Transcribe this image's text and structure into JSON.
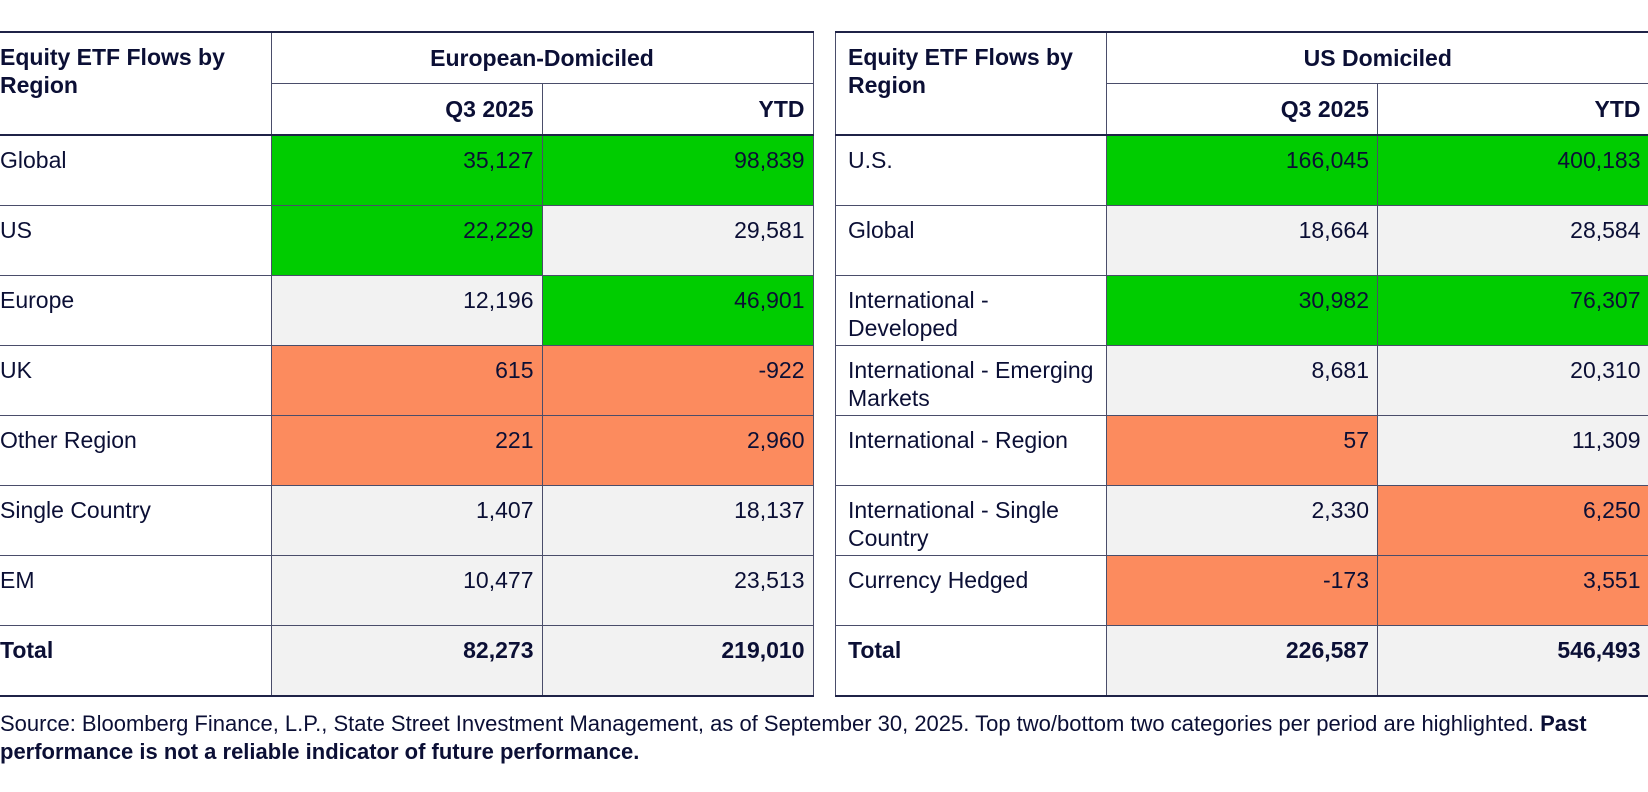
{
  "colors": {
    "top": "#00cc00",
    "bottom": "#fc8b5e",
    "neutral": "#f2f2f2",
    "text": "#0b0f35"
  },
  "tables": [
    {
      "title": "Equity ETF Flows by Region",
      "group": "European-Domiciled",
      "columns": [
        "Q3 2025",
        "YTD"
      ],
      "rows": [
        {
          "label": "Global",
          "q3": "35,127",
          "ytd": "98,839",
          "q3_hl": "hi",
          "ytd_hl": "hi"
        },
        {
          "label": "US",
          "q3": "22,229",
          "ytd": "29,581",
          "q3_hl": "hi",
          "ytd_hl": ""
        },
        {
          "label": "Europe",
          "q3": "12,196",
          "ytd": "46,901",
          "q3_hl": "",
          "ytd_hl": "hi"
        },
        {
          "label": "UK",
          "q3": "615",
          "ytd": "-922",
          "q3_hl": "lo",
          "ytd_hl": "lo"
        },
        {
          "label": "Other Region",
          "q3": "221",
          "ytd": "2,960",
          "q3_hl": "lo",
          "ytd_hl": "lo"
        },
        {
          "label": "Single Country",
          "q3": "1,407",
          "ytd": "18,137",
          "q3_hl": "",
          "ytd_hl": ""
        },
        {
          "label": "EM",
          "q3": "10,477",
          "ytd": "23,513",
          "q3_hl": "",
          "ytd_hl": ""
        }
      ],
      "total": {
        "label": "Total",
        "q3": "82,273",
        "ytd": "219,010"
      }
    },
    {
      "title": "Equity ETF Flows by Region",
      "group": "US Domiciled",
      "columns": [
        "Q3 2025",
        "YTD"
      ],
      "rows": [
        {
          "label": "U.S.",
          "q3": "166,045",
          "ytd": "400,183",
          "q3_hl": "hi",
          "ytd_hl": "hi"
        },
        {
          "label": "Global",
          "q3": "18,664",
          "ytd": "28,584",
          "q3_hl": "",
          "ytd_hl": ""
        },
        {
          "label": "International - Developed",
          "q3": "30,982",
          "ytd": "76,307",
          "q3_hl": "hi",
          "ytd_hl": "hi"
        },
        {
          "label": "International - Emerging Markets",
          "q3": "8,681",
          "ytd": "20,310",
          "q3_hl": "",
          "ytd_hl": ""
        },
        {
          "label": "International - Region",
          "q3": "57",
          "ytd": "11,309",
          "q3_hl": "lo",
          "ytd_hl": ""
        },
        {
          "label": "International - Single Country",
          "q3": "2,330",
          "ytd": "6,250",
          "q3_hl": "",
          "ytd_hl": "lo"
        },
        {
          "label": "Currency Hedged",
          "q3": "-173",
          "ytd": "3,551",
          "q3_hl": "lo",
          "ytd_hl": "lo"
        }
      ],
      "total": {
        "label": "Total",
        "q3": "226,587",
        "ytd": "546,493"
      }
    }
  ],
  "footnote": {
    "source": "Source: Bloomberg Finance, L.P., State Street Investment Management, as of September 30, 2025. Top two/bottom two categories per period are highlighted.",
    "disclaimer": "Past performance is not a reliable indicator of future performance."
  }
}
